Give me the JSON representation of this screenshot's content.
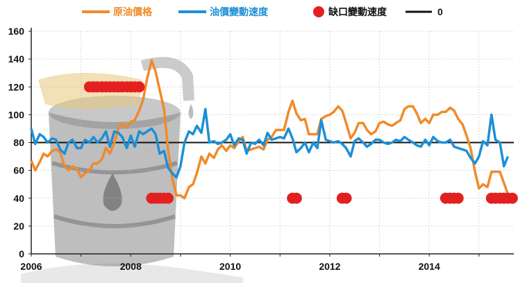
{
  "chart_data": {
    "type": "line",
    "title": "",
    "xlabel": "",
    "ylabel": "",
    "xlim": [
      2006,
      2015.7
    ],
    "ylim": [
      0,
      160
    ],
    "grid": true,
    "legend_position": "top",
    "x_ticks": [
      "2006",
      "2008",
      "2010",
      "2012",
      "2014"
    ],
    "y_ticks": [
      "0",
      "20",
      "40",
      "60",
      "80",
      "100",
      "120",
      "140",
      "160"
    ],
    "colors": {
      "oil_price": "#f08a2a",
      "oil_speed": "#1c8fd6",
      "gap_speed": "#e32020",
      "zero_line": "#111111",
      "grid": "#bbbbbb"
    },
    "legend": [
      "原油價格",
      "油價變動速度",
      "缺口變動速度",
      "0"
    ],
    "zero_line_value": 80,
    "series": [
      {
        "name": "原油價格",
        "style": "line",
        "points": [
          [
            2006.0,
            67
          ],
          [
            2006.08,
            60
          ],
          [
            2006.17,
            66
          ],
          [
            2006.25,
            72
          ],
          [
            2006.33,
            70
          ],
          [
            2006.42,
            74
          ],
          [
            2006.5,
            75
          ],
          [
            2006.58,
            73
          ],
          [
            2006.67,
            63
          ],
          [
            2006.75,
            60
          ],
          [
            2006.83,
            63
          ],
          [
            2006.92,
            61
          ],
          [
            2007.0,
            55
          ],
          [
            2007.08,
            58
          ],
          [
            2007.17,
            60
          ],
          [
            2007.25,
            65
          ],
          [
            2007.33,
            65
          ],
          [
            2007.42,
            68
          ],
          [
            2007.5,
            76
          ],
          [
            2007.58,
            72
          ],
          [
            2007.67,
            80
          ],
          [
            2007.75,
            90
          ],
          [
            2007.83,
            94
          ],
          [
            2007.92,
            91
          ],
          [
            2008.0,
            95
          ],
          [
            2008.08,
            96
          ],
          [
            2008.17,
            103
          ],
          [
            2008.25,
            111
          ],
          [
            2008.33,
            126
          ],
          [
            2008.42,
            139
          ],
          [
            2008.5,
            131
          ],
          [
            2008.58,
            118
          ],
          [
            2008.67,
            104
          ],
          [
            2008.75,
            75
          ],
          [
            2008.83,
            55
          ],
          [
            2008.92,
            42
          ],
          [
            2009.0,
            42
          ],
          [
            2009.08,
            40
          ],
          [
            2009.17,
            48
          ],
          [
            2009.25,
            50
          ],
          [
            2009.33,
            58
          ],
          [
            2009.42,
            70
          ],
          [
            2009.5,
            65
          ],
          [
            2009.58,
            72
          ],
          [
            2009.67,
            69
          ],
          [
            2009.75,
            75
          ],
          [
            2009.83,
            78
          ],
          [
            2009.92,
            74
          ],
          [
            2010.0,
            78
          ],
          [
            2010.08,
            76
          ],
          [
            2010.17,
            81
          ],
          [
            2010.25,
            84
          ],
          [
            2010.33,
            74
          ],
          [
            2010.42,
            75
          ],
          [
            2010.5,
            76
          ],
          [
            2010.58,
            77
          ],
          [
            2010.67,
            75
          ],
          [
            2010.75,
            82
          ],
          [
            2010.83,
            84
          ],
          [
            2010.92,
            89
          ],
          [
            2011.0,
            89
          ],
          [
            2011.08,
            89
          ],
          [
            2011.17,
            102
          ],
          [
            2011.25,
            110
          ],
          [
            2011.33,
            101
          ],
          [
            2011.42,
            96
          ],
          [
            2011.5,
            97
          ],
          [
            2011.58,
            86
          ],
          [
            2011.67,
            86
          ],
          [
            2011.75,
            86
          ],
          [
            2011.83,
            97
          ],
          [
            2011.92,
            99
          ],
          [
            2012.0,
            100
          ],
          [
            2012.08,
            102
          ],
          [
            2012.17,
            106
          ],
          [
            2012.25,
            103
          ],
          [
            2012.33,
            94
          ],
          [
            2012.42,
            83
          ],
          [
            2012.5,
            87
          ],
          [
            2012.58,
            94
          ],
          [
            2012.67,
            94
          ],
          [
            2012.75,
            89
          ],
          [
            2012.83,
            86
          ],
          [
            2012.92,
            88
          ],
          [
            2013.0,
            94
          ],
          [
            2013.08,
            95
          ],
          [
            2013.17,
            93
          ],
          [
            2013.25,
            92
          ],
          [
            2013.33,
            94
          ],
          [
            2013.42,
            96
          ],
          [
            2013.5,
            104
          ],
          [
            2013.58,
            106
          ],
          [
            2013.67,
            106
          ],
          [
            2013.75,
            101
          ],
          [
            2013.83,
            94
          ],
          [
            2013.92,
            97
          ],
          [
            2014.0,
            94
          ],
          [
            2014.08,
            100
          ],
          [
            2014.17,
            100
          ],
          [
            2014.25,
            102
          ],
          [
            2014.33,
            102
          ],
          [
            2014.42,
            105
          ],
          [
            2014.5,
            103
          ],
          [
            2014.58,
            97
          ],
          [
            2014.67,
            93
          ],
          [
            2014.75,
            85
          ],
          [
            2014.83,
            76
          ],
          [
            2014.92,
            59
          ],
          [
            2015.0,
            47
          ],
          [
            2015.08,
            50
          ],
          [
            2015.17,
            48
          ],
          [
            2015.25,
            59
          ],
          [
            2015.33,
            59
          ],
          [
            2015.42,
            59
          ],
          [
            2015.5,
            51
          ],
          [
            2015.58,
            43
          ]
        ]
      },
      {
        "name": "油價變動速度",
        "style": "line",
        "points": [
          [
            2006.0,
            90
          ],
          [
            2006.08,
            79
          ],
          [
            2006.17,
            86
          ],
          [
            2006.25,
            84
          ],
          [
            2006.33,
            80
          ],
          [
            2006.42,
            83
          ],
          [
            2006.5,
            82
          ],
          [
            2006.58,
            75
          ],
          [
            2006.67,
            72
          ],
          [
            2006.75,
            80
          ],
          [
            2006.83,
            82
          ],
          [
            2006.92,
            76
          ],
          [
            2007.0,
            76
          ],
          [
            2007.08,
            82
          ],
          [
            2007.17,
            80
          ],
          [
            2007.25,
            84
          ],
          [
            2007.33,
            80
          ],
          [
            2007.42,
            83
          ],
          [
            2007.5,
            88
          ],
          [
            2007.58,
            77
          ],
          [
            2007.67,
            88
          ],
          [
            2007.75,
            87
          ],
          [
            2007.83,
            84
          ],
          [
            2007.92,
            76
          ],
          [
            2008.0,
            85
          ],
          [
            2008.08,
            77
          ],
          [
            2008.17,
            88
          ],
          [
            2008.25,
            86
          ],
          [
            2008.33,
            88
          ],
          [
            2008.42,
            90
          ],
          [
            2008.5,
            86
          ],
          [
            2008.58,
            72
          ],
          [
            2008.67,
            74
          ],
          [
            2008.75,
            62
          ],
          [
            2008.83,
            58
          ],
          [
            2008.92,
            55
          ],
          [
            2009.0,
            63
          ],
          [
            2009.08,
            80
          ],
          [
            2009.17,
            88
          ],
          [
            2009.25,
            86
          ],
          [
            2009.33,
            92
          ],
          [
            2009.42,
            87
          ],
          [
            2009.5,
            104
          ],
          [
            2009.58,
            80
          ],
          [
            2009.67,
            81
          ],
          [
            2009.75,
            79
          ],
          [
            2009.83,
            80
          ],
          [
            2009.92,
            82
          ],
          [
            2010.0,
            86
          ],
          [
            2010.08,
            78
          ],
          [
            2010.17,
            83
          ],
          [
            2010.25,
            82
          ],
          [
            2010.33,
            72
          ],
          [
            2010.42,
            80
          ],
          [
            2010.5,
            79
          ],
          [
            2010.58,
            82
          ],
          [
            2010.67,
            78
          ],
          [
            2010.75,
            87
          ],
          [
            2010.83,
            82
          ],
          [
            2010.92,
            83
          ],
          [
            2011.0,
            84
          ],
          [
            2011.08,
            83
          ],
          [
            2011.17,
            90
          ],
          [
            2011.25,
            83
          ],
          [
            2011.33,
            73
          ],
          [
            2011.42,
            76
          ],
          [
            2011.5,
            80
          ],
          [
            2011.58,
            73
          ],
          [
            2011.67,
            80
          ],
          [
            2011.75,
            76
          ],
          [
            2011.83,
            96
          ],
          [
            2011.92,
            82
          ],
          [
            2012.0,
            81
          ],
          [
            2012.08,
            80
          ],
          [
            2012.17,
            81
          ],
          [
            2012.25,
            79
          ],
          [
            2012.33,
            76
          ],
          [
            2012.42,
            70
          ],
          [
            2012.5,
            81
          ],
          [
            2012.58,
            83
          ],
          [
            2012.67,
            80
          ],
          [
            2012.75,
            77
          ],
          [
            2012.83,
            79
          ],
          [
            2012.92,
            82
          ],
          [
            2013.0,
            82
          ],
          [
            2013.08,
            80
          ],
          [
            2013.17,
            79
          ],
          [
            2013.25,
            80
          ],
          [
            2013.33,
            82
          ],
          [
            2013.42,
            81
          ],
          [
            2013.5,
            84
          ],
          [
            2013.58,
            82
          ],
          [
            2013.67,
            80
          ],
          [
            2013.75,
            78
          ],
          [
            2013.83,
            77
          ],
          [
            2013.92,
            82
          ],
          [
            2014.0,
            78
          ],
          [
            2014.08,
            84
          ],
          [
            2014.17,
            81
          ],
          [
            2014.25,
            80
          ],
          [
            2014.33,
            80
          ],
          [
            2014.42,
            82
          ],
          [
            2014.5,
            77
          ],
          [
            2014.58,
            76
          ],
          [
            2014.67,
            75
          ],
          [
            2014.75,
            74
          ],
          [
            2014.83,
            69
          ],
          [
            2014.92,
            65
          ],
          [
            2015.0,
            70
          ],
          [
            2015.08,
            81
          ],
          [
            2015.17,
            78
          ],
          [
            2015.25,
            100
          ],
          [
            2015.33,
            82
          ],
          [
            2015.42,
            80
          ],
          [
            2015.5,
            63
          ],
          [
            2015.58,
            70
          ]
        ]
      },
      {
        "name": "缺口變動速度",
        "style": "dots",
        "points": [
          [
            2007.17,
            120
          ],
          [
            2007.25,
            120
          ],
          [
            2007.33,
            120
          ],
          [
            2007.42,
            120
          ],
          [
            2007.5,
            120
          ],
          [
            2007.58,
            120
          ],
          [
            2007.67,
            120
          ],
          [
            2007.75,
            120
          ],
          [
            2007.83,
            120
          ],
          [
            2007.92,
            120
          ],
          [
            2008.0,
            120
          ],
          [
            2008.08,
            120
          ],
          [
            2008.17,
            120
          ],
          [
            2008.42,
            40
          ],
          [
            2008.5,
            40
          ],
          [
            2008.58,
            40
          ],
          [
            2008.67,
            40
          ],
          [
            2008.75,
            40
          ],
          [
            2011.25,
            40
          ],
          [
            2011.33,
            40
          ],
          [
            2012.25,
            40
          ],
          [
            2012.33,
            40
          ],
          [
            2014.33,
            40
          ],
          [
            2014.42,
            40
          ],
          [
            2014.5,
            40
          ],
          [
            2014.58,
            40
          ],
          [
            2015.25,
            40
          ],
          [
            2015.33,
            40
          ],
          [
            2015.42,
            40
          ],
          [
            2015.5,
            40
          ],
          [
            2015.58,
            40
          ],
          [
            2015.67,
            40
          ]
        ]
      }
    ]
  }
}
